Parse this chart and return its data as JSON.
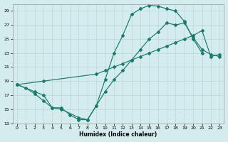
{
  "xlabel": "Humidex (Indice chaleur)",
  "line_color": "#1a7a6e",
  "bg_color": "#d4ecee",
  "grid_color": "#c8dfe0",
  "xlim": [
    -0.5,
    23.5
  ],
  "ylim": [
    13,
    30
  ],
  "xticks": [
    0,
    1,
    2,
    3,
    4,
    5,
    6,
    7,
    8,
    9,
    10,
    11,
    12,
    13,
    14,
    15,
    16,
    17,
    18,
    19,
    20,
    21,
    22,
    23
  ],
  "yticks": [
    13,
    15,
    17,
    19,
    21,
    23,
    25,
    27,
    29
  ],
  "line1_x": [
    0,
    1,
    2,
    3,
    4,
    5,
    6,
    7,
    8,
    9,
    10,
    11,
    12,
    13,
    14,
    15,
    16,
    17,
    18,
    19,
    20,
    21
  ],
  "line1_y": [
    18.5,
    18.0,
    17.2,
    16.2,
    15.2,
    15.2,
    14.2,
    13.5,
    13.5,
    15.5,
    19.2,
    23.0,
    25.5,
    28.5,
    29.3,
    29.8,
    29.7,
    29.3,
    29.0,
    27.5,
    25.0,
    23.0
  ],
  "line2_x": [
    0,
    3,
    9,
    10,
    11,
    12,
    13,
    14,
    15,
    16,
    17,
    18,
    19,
    20,
    21,
    22,
    23
  ],
  "line2_y": [
    18.5,
    19.0,
    20.0,
    20.5,
    21.0,
    21.5,
    22.0,
    22.5,
    23.0,
    23.5,
    24.0,
    24.5,
    25.0,
    25.5,
    26.2,
    22.5,
    22.8
  ],
  "line3_x": [
    0,
    2,
    3,
    4,
    5,
    7,
    8,
    9,
    10,
    11,
    12,
    13,
    14,
    15,
    16,
    17,
    18,
    19,
    20,
    21,
    22,
    23
  ],
  "line3_y": [
    18.5,
    17.5,
    17.0,
    15.2,
    15.0,
    13.8,
    13.5,
    15.5,
    17.5,
    19.2,
    20.5,
    22.0,
    23.5,
    25.0,
    26.0,
    27.3,
    27.0,
    27.3,
    25.2,
    23.5,
    22.8,
    22.5
  ]
}
